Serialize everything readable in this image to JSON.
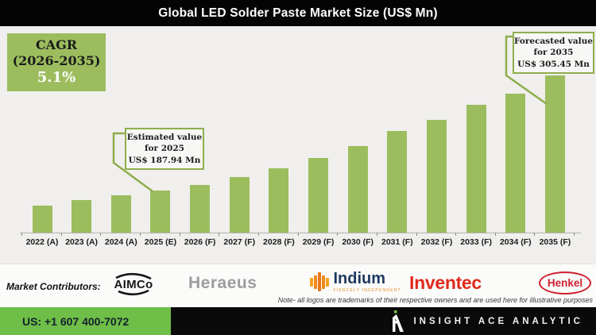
{
  "title_bar": {
    "title": "Global LED Solder Paste Market Size (US$ Mn)"
  },
  "cagr_box": {
    "line1": "CAGR",
    "line2": "(2026-2035)",
    "value": "5.1%"
  },
  "callouts": {
    "estimated": {
      "line1": "Estimated value",
      "line2": "for 2025",
      "line3": "US$ 187.94 Mn"
    },
    "forecasted": {
      "line1": "Forecasted value",
      "line2": "for 2035",
      "line3": "US$ 305.45 Mn"
    }
  },
  "chart_data": {
    "type": "bar",
    "title": "Global LED Solder Paste Market Size (US$ Mn)",
    "unit": "US$ Mn",
    "categories": [
      "2022 (A)",
      "2023 (A)",
      "2024 (A)",
      "2025 (E)",
      "2026 (F)",
      "2027 (F)",
      "2028 (F)",
      "2029 (F)",
      "2030 (F)",
      "2031 (F)",
      "2032 (F)",
      "2033 (F)",
      "2034 (F)",
      "2035 (F)"
    ],
    "values": [
      172.6,
      178.2,
      182.7,
      187.94,
      194.0,
      201.7,
      210.6,
      221.2,
      233.7,
      248.7,
      260.1,
      275.1,
      286.8,
      305.45
    ],
    "labeled_values": {
      "2025 (E)": 187.94,
      "2035 (F)": 305.45
    },
    "cagr_2026_2035_pct": 5.1,
    "bar_color": "#9cbd5e",
    "axis_baseline_value": 145,
    "ylim": [
      145,
      310
    ],
    "grid": false,
    "legend": false
  },
  "contributors": {
    "label": "Market Contributors:",
    "aimco": "AIMCo",
    "heraeus": "Heraeus",
    "indium": "Indium",
    "indium_tagline": "FIERCELY INDEPENDENT",
    "inventec": "Inventec",
    "henkel": "Henkel",
    "note": "Note- all logos are trademarks of their respective owners and are used here for illustrative purposes"
  },
  "footer": {
    "phone": "US: +1 607 400-7072",
    "brand": "INSIGHT ACE ANALYTIC"
  },
  "colors": {
    "bar_green": "#9cbd5e",
    "callout_border": "#8fae4c",
    "footer_green": "#6fbe47",
    "title_bar_bg": "#040404",
    "heraeus_gray": "#9d9d9d",
    "indium_navy": "#1d3a5f",
    "indium_orange": "#ee8a1f",
    "inventec_red": "#e02a1d",
    "henkel_red": "#cf1f2e"
  }
}
